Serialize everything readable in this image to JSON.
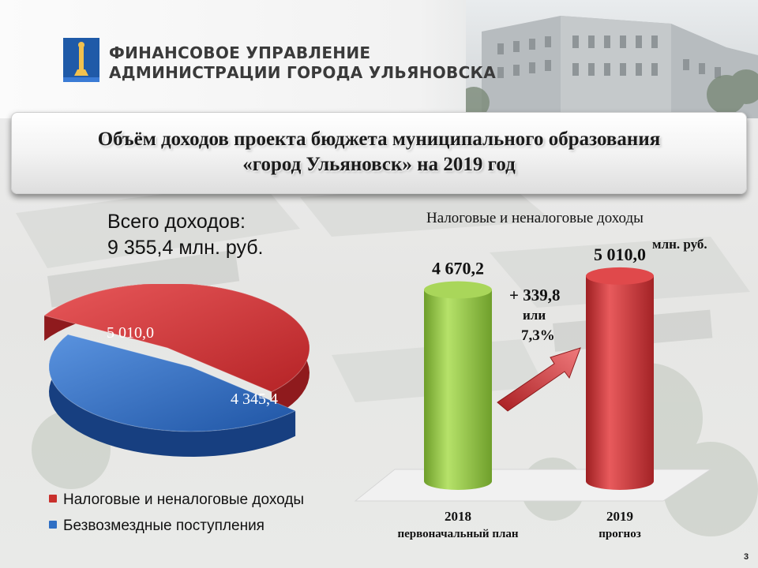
{
  "header": {
    "org_line1": "ФИНАНСОВОЕ УПРАВЛЕНИЕ",
    "org_line2": "АДМИНИСТРАЦИИ ГОРОДА УЛЬЯНОВСКА"
  },
  "title": {
    "line1": "Объём доходов проекта бюджета муниципального образования",
    "line2": "«город Ульяновск» на 2019 год"
  },
  "total": {
    "label": "Всего доходов:",
    "value": "9 355,4 млн. руб."
  },
  "page_number": "3",
  "colors": {
    "red": "#c9302c",
    "blue": "#2f6fc4",
    "green": "#8cc63f"
  },
  "chart_data": [
    {
      "type": "pie",
      "slices": [
        {
          "label": "Налоговые и неналоговые доходы",
          "value": 5010.0,
          "display": "5 010,0",
          "color": "#c9302c"
        },
        {
          "label": "Безвозмездные поступления",
          "value": 4345.4,
          "display": "4 345,4",
          "color": "#2f6fc4"
        }
      ],
      "legend_position": "bottom-left"
    },
    {
      "type": "bar",
      "title": "Налоговые и неналоговые доходы",
      "unit": "млн. руб.",
      "categories": [
        "2018",
        "2019"
      ],
      "category_sublabels": [
        "первоначальный план",
        "прогноз"
      ],
      "values": [
        4670.2,
        5010.0
      ],
      "value_labels": [
        "4 670,2",
        "5 010,0"
      ],
      "colors": [
        "#8cc63f",
        "#c9302c"
      ],
      "annotation": {
        "line1": "+ 339,8",
        "line2": "или",
        "line3": "7,3%"
      }
    }
  ]
}
